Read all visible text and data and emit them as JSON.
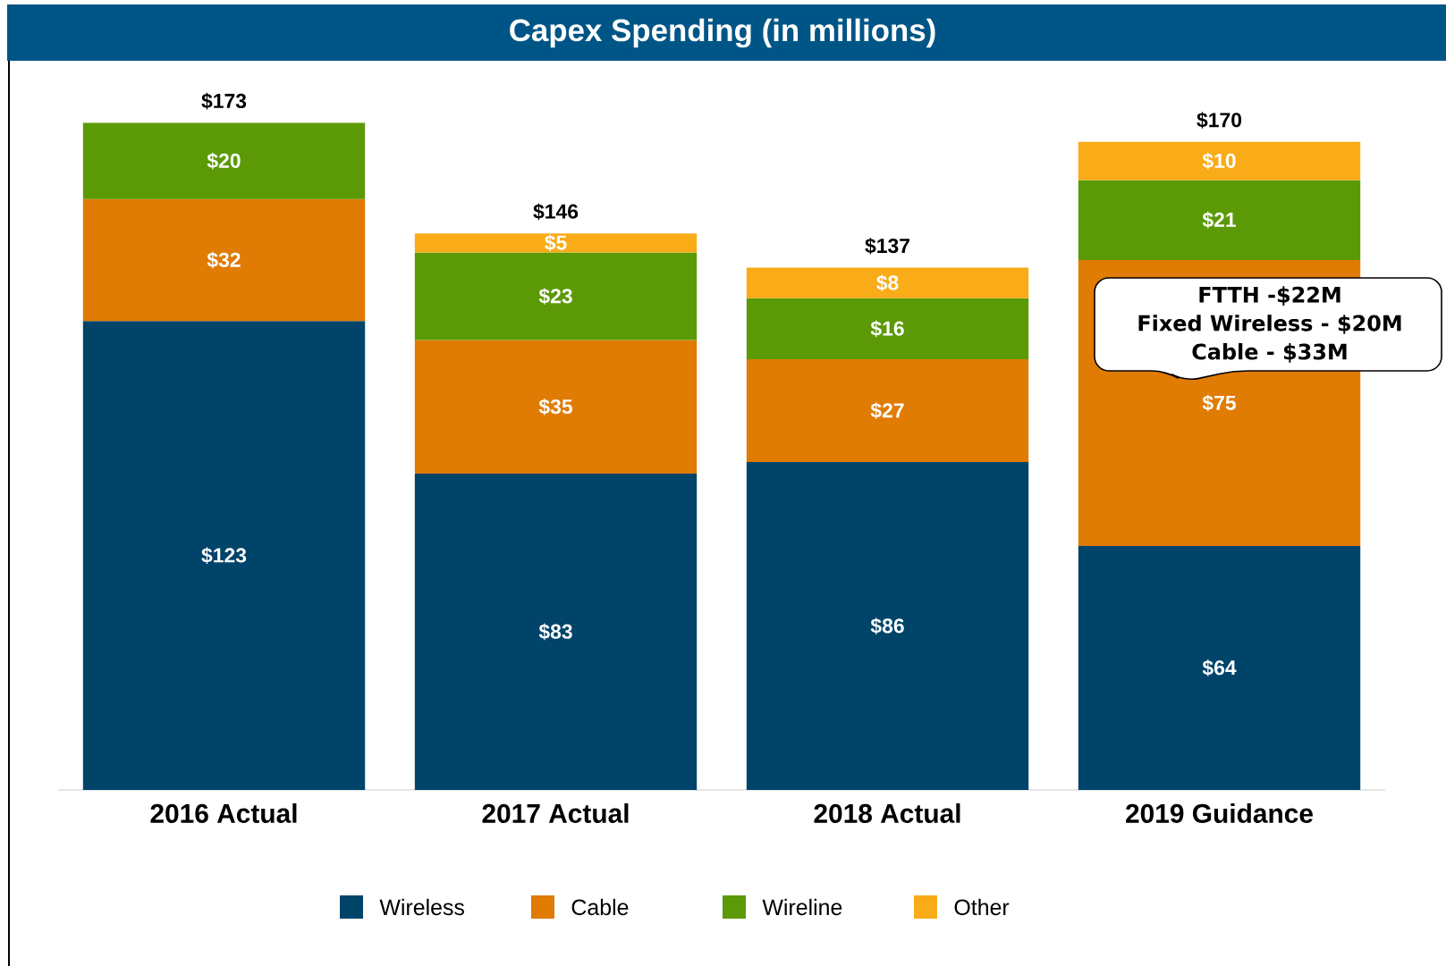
{
  "chart_data": {
    "type": "bar",
    "title": "Capex Spending (in millions)",
    "stacked": true,
    "data_labels": false,
    "legend": "bottom",
    "tick_labels": "x",
    "categories": [
      "2016 Actual",
      "2017 Actual",
      "2018 Actual",
      "2019 Guidance"
    ],
    "series": [
      {
        "name": "Wireless",
        "color": "#00446a",
        "values": [
          123,
          83,
          86,
          64
        ],
        "value_labels": [
          "$123",
          "$83",
          "$86",
          "$64"
        ]
      },
      {
        "name": "Cable",
        "color": "#e07b04",
        "values": [
          32,
          35,
          27,
          75
        ],
        "value_labels": [
          "$32",
          "$35",
          "$27",
          "$75"
        ]
      },
      {
        "name": "Wireline",
        "color": "#5b9a06",
        "values": [
          20,
          23,
          16,
          21
        ],
        "value_labels": [
          "$20",
          "$23",
          "$16",
          "$21"
        ]
      },
      {
        "name": "Other",
        "color": "#f9ab18",
        "values": [
          null,
          5,
          8,
          10
        ],
        "value_labels": [
          null,
          "$5",
          "$8",
          "$10"
        ]
      }
    ],
    "totals": [
      "$173",
      "$146",
      "$137",
      "$170"
    ],
    "annotations": [
      "FTTH -$22M",
      "Fixed Wireless - $20M",
      "Cable - $33M"
    ]
  }
}
